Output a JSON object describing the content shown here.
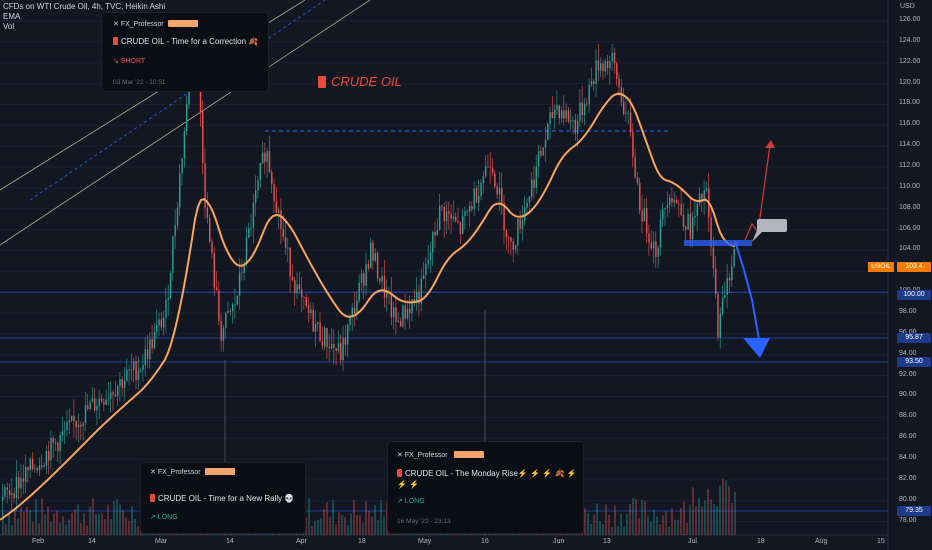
{
  "header": {
    "symbol_line": "CFDs on WTI Crude Oil, 4h, TVC, Heikin Ashi",
    "ema_label": "EMA",
    "vol_label": "Vol"
  },
  "price_axis": {
    "currency": "USD",
    "labels": [
      "126.00",
      "124.00",
      "122.00",
      "120.00",
      "118.00",
      "116.00",
      "114.00",
      "112.00",
      "110.00",
      "108.00",
      "106.00",
      "104.00",
      "102.00",
      "100.00",
      "98.00",
      "96.00",
      "94.00",
      "92.00",
      "90.00",
      "88.00",
      "86.00",
      "84.00",
      "82.00",
      "80.00",
      "78.00"
    ],
    "tags": {
      "current": "103.4",
      "level_100": "100.00",
      "level_95": "95.87",
      "level_93": "93.50",
      "level_79": "79.35"
    },
    "ticker_tag": "USOIL"
  },
  "time_axis": {
    "labels": [
      "Feb",
      "14",
      "Mar",
      "14",
      "Apr",
      "18",
      "May",
      "16",
      "Jun",
      "13",
      "Jul",
      "18",
      "Aug",
      "15"
    ]
  },
  "ideas": [
    {
      "user": "FX_Professor",
      "title": "CRUDE OIL - Time for a Correction 🍂",
      "signal": "↘ SHORT",
      "time": "03 Mar '22 - 10:51"
    },
    {
      "user": "FX_Professor",
      "title": "CRUDE OIL - Time for a New Rally 💀",
      "signal": "↗ LONG",
      "time": ""
    },
    {
      "user": "FX_Professor",
      "title": "CRUDE OIL - The Monday Rise⚡ ⚡ ⚡ 🍂 ⚡ ⚡ ⚡",
      "signal": "↗ LONG",
      "time": "16 May '22 - 23:13"
    }
  ],
  "chart_label": "CRUDE OIL",
  "colors": {
    "background": "#131722",
    "up": "#26a69a",
    "down": "#ef5350",
    "ema": "#f7a45c",
    "level_line": "#2962ff",
    "short_tag": "#f7525f",
    "long_tag": "#22ab94",
    "ticker": "#f57c00"
  }
}
